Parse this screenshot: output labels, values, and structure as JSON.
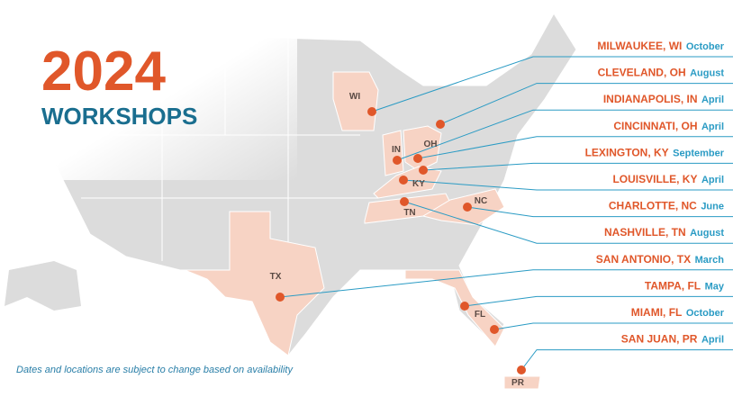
{
  "header": {
    "year": "2024",
    "title": "WORKSHOPS"
  },
  "workshops": [
    {
      "city": "MILWAUKEE, WI",
      "month": "October"
    },
    {
      "city": "CLEVELAND, OH",
      "month": "August"
    },
    {
      "city": "INDIANAPOLIS, IN",
      "month": "April"
    },
    {
      "city": "CINCINNATI, OH",
      "month": "April"
    },
    {
      "city": "LEXINGTON, KY",
      "month": "September"
    },
    {
      "city": "LOUISVILLE, KY",
      "month": "April"
    },
    {
      "city": "CHARLOTTE, NC",
      "month": "June"
    },
    {
      "city": "NASHVILLE, TN",
      "month": "August"
    },
    {
      "city": "SAN ANTONIO, TX",
      "month": "March"
    },
    {
      "city": "TAMPA, FL",
      "month": "May"
    },
    {
      "city": "MIAMI, FL",
      "month": "October"
    },
    {
      "city": "SAN JUAN, PR",
      "month": "April"
    }
  ],
  "state_labels": [
    "WI",
    "IN",
    "OH",
    "KY",
    "NC",
    "TN",
    "TX",
    "FL",
    "PR"
  ],
  "note": "Dates and locations are subject to change based on availability"
}
